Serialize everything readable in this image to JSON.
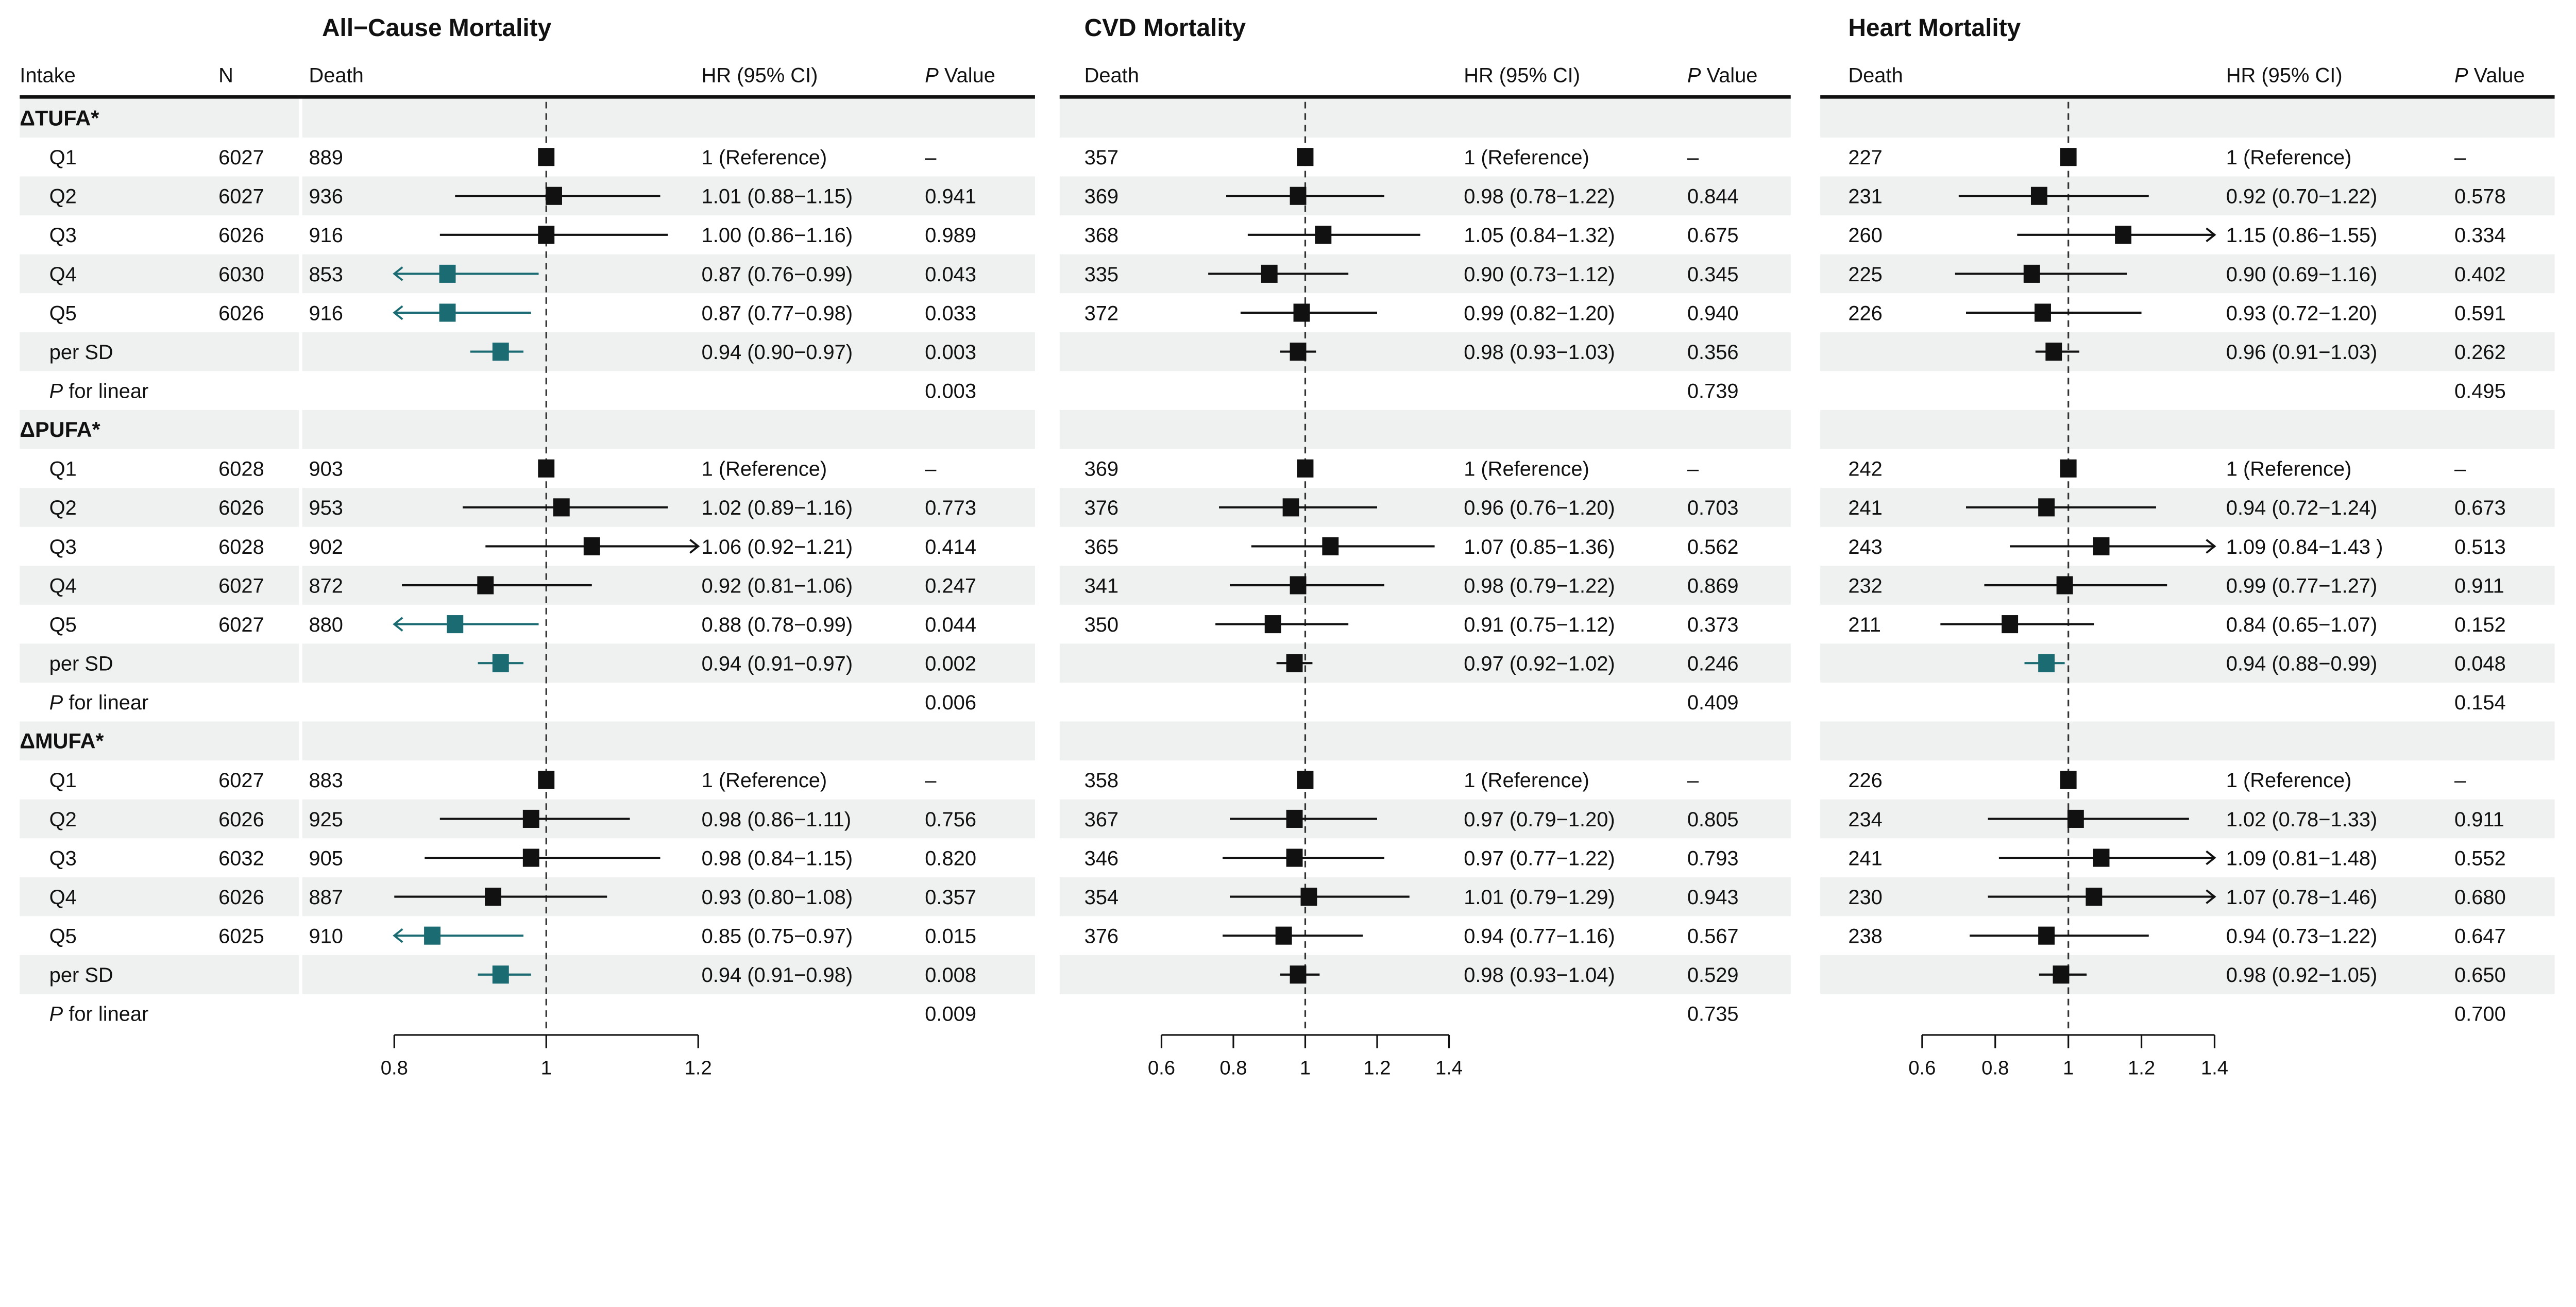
{
  "colors": {
    "significant": "#1b6b73",
    "default": "#111111",
    "band": "#eef1f0"
  },
  "table": {
    "headers": {
      "intake": "Intake",
      "n": "N"
    },
    "groups": [
      {
        "label": "ΔTUFA*",
        "rows": [
          {
            "label": "Q1",
            "n": "6027"
          },
          {
            "label": "Q2",
            "n": "6027"
          },
          {
            "label": "Q3",
            "n": "6026"
          },
          {
            "label": "Q4",
            "n": "6030"
          },
          {
            "label": "Q5",
            "n": "6026"
          },
          {
            "label": "per SD",
            "n": ""
          },
          {
            "label": "P for linear",
            "n": ""
          }
        ]
      },
      {
        "label": "ΔPUFA*",
        "rows": [
          {
            "label": "Q1",
            "n": "6028"
          },
          {
            "label": "Q2",
            "n": "6026"
          },
          {
            "label": "Q3",
            "n": "6028"
          },
          {
            "label": "Q4",
            "n": "6027"
          },
          {
            "label": "Q5",
            "n": "6027"
          },
          {
            "label": "per SD",
            "n": ""
          },
          {
            "label": "P for linear",
            "n": ""
          }
        ]
      },
      {
        "label": "ΔMUFA*",
        "rows": [
          {
            "label": "Q1",
            "n": "6027"
          },
          {
            "label": "Q2",
            "n": "6026"
          },
          {
            "label": "Q3",
            "n": "6032"
          },
          {
            "label": "Q4",
            "n": "6026"
          },
          {
            "label": "Q5",
            "n": "6025"
          },
          {
            "label": "per SD",
            "n": ""
          },
          {
            "label": "P for linear",
            "n": ""
          }
        ]
      }
    ]
  },
  "chart_data": [
    {
      "type": "forest",
      "title": "All−Cause Mortality",
      "headers": {
        "death": "Death",
        "hr": "HR (95% CI)",
        "p": "P Value"
      },
      "xlim": [
        0.8,
        1.2
      ],
      "ticks": [
        0.8,
        1,
        1.2
      ],
      "tick_labels": [
        "0.8",
        "1",
        "1.2"
      ],
      "reference_line": 1,
      "groups": [
        {
          "rows": [
            {
              "death": "889",
              "hr": 1,
              "lo": null,
              "hi": null,
              "hr_ci": "1 (Reference)",
              "p": "–"
            },
            {
              "death": "936",
              "hr": 1.01,
              "lo": 0.88,
              "hi": 1.15,
              "hr_ci": "1.01 (0.88−1.15)",
              "p": "0.941"
            },
            {
              "death": "916",
              "hr": 1.0,
              "lo": 0.86,
              "hi": 1.16,
              "hr_ci": "1.00 (0.86−1.16)",
              "p": "0.989"
            },
            {
              "death": "853",
              "hr": 0.87,
              "lo": 0.76,
              "hi": 0.99,
              "hr_ci": "0.87 (0.76−0.99)",
              "p": "0.043",
              "significant": true
            },
            {
              "death": "916",
              "hr": 0.87,
              "lo": 0.77,
              "hi": 0.98,
              "hr_ci": "0.87 (0.77−0.98)",
              "p": "0.033",
              "significant": true
            },
            {
              "death": "",
              "hr": 0.94,
              "lo": 0.9,
              "hi": 0.97,
              "hr_ci": "0.94 (0.90−0.97)",
              "p": "0.003",
              "significant": true
            },
            {
              "death": "",
              "hr": null,
              "hr_ci": "",
              "p": "0.003"
            }
          ]
        },
        {
          "rows": [
            {
              "death": "903",
              "hr": 1,
              "lo": null,
              "hi": null,
              "hr_ci": "1 (Reference)",
              "p": "–"
            },
            {
              "death": "953",
              "hr": 1.02,
              "lo": 0.89,
              "hi": 1.16,
              "hr_ci": "1.02 (0.89−1.16)",
              "p": "0.773"
            },
            {
              "death": "902",
              "hr": 1.06,
              "lo": 0.92,
              "hi": 1.21,
              "hr_ci": "1.06 (0.92−1.21)",
              "p": "0.414"
            },
            {
              "death": "872",
              "hr": 0.92,
              "lo": 0.81,
              "hi": 1.06,
              "hr_ci": "0.92 (0.81−1.06)",
              "p": "0.247"
            },
            {
              "death": "880",
              "hr": 0.88,
              "lo": 0.78,
              "hi": 0.99,
              "hr_ci": "0.88 (0.78−0.99)",
              "p": "0.044",
              "significant": true
            },
            {
              "death": "",
              "hr": 0.94,
              "lo": 0.91,
              "hi": 0.97,
              "hr_ci": "0.94 (0.91−0.97)",
              "p": "0.002",
              "significant": true
            },
            {
              "death": "",
              "hr": null,
              "hr_ci": "",
              "p": "0.006"
            }
          ]
        },
        {
          "rows": [
            {
              "death": "883",
              "hr": 1,
              "lo": null,
              "hi": null,
              "hr_ci": "1 (Reference)",
              "p": "–"
            },
            {
              "death": "925",
              "hr": 0.98,
              "lo": 0.86,
              "hi": 1.11,
              "hr_ci": "0.98 (0.86−1.11)",
              "p": "0.756"
            },
            {
              "death": "905",
              "hr": 0.98,
              "lo": 0.84,
              "hi": 1.15,
              "hr_ci": "0.98 (0.84−1.15)",
              "p": "0.820"
            },
            {
              "death": "887",
              "hr": 0.93,
              "lo": 0.8,
              "hi": 1.08,
              "hr_ci": "0.93 (0.80−1.08)",
              "p": "0.357"
            },
            {
              "death": "910",
              "hr": 0.85,
              "lo": 0.75,
              "hi": 0.97,
              "hr_ci": "0.85 (0.75−0.97)",
              "p": "0.015",
              "significant": true
            },
            {
              "death": "",
              "hr": 0.94,
              "lo": 0.91,
              "hi": 0.98,
              "hr_ci": "0.94 (0.91−0.98)",
              "p": "0.008",
              "significant": true
            },
            {
              "death": "",
              "hr": null,
              "hr_ci": "",
              "p": "0.009"
            }
          ]
        }
      ]
    },
    {
      "type": "forest",
      "title": "CVD Mortality",
      "headers": {
        "death": "Death",
        "hr": "HR (95% CI)",
        "p": "P Value"
      },
      "xlim": [
        0.6,
        1.4
      ],
      "ticks": [
        0.6,
        0.8,
        1,
        1.2,
        1.4
      ],
      "tick_labels": [
        "0.6",
        "0.8",
        "1",
        "1.2",
        "1.4"
      ],
      "reference_line": 1,
      "groups": [
        {
          "rows": [
            {
              "death": "357",
              "hr": 1,
              "lo": null,
              "hi": null,
              "hr_ci": "1 (Reference)",
              "p": "–"
            },
            {
              "death": "369",
              "hr": 0.98,
              "lo": 0.78,
              "hi": 1.22,
              "hr_ci": "0.98 (0.78−1.22)",
              "p": "0.844"
            },
            {
              "death": "368",
              "hr": 1.05,
              "lo": 0.84,
              "hi": 1.32,
              "hr_ci": "1.05 (0.84−1.32)",
              "p": "0.675"
            },
            {
              "death": "335",
              "hr": 0.9,
              "lo": 0.73,
              "hi": 1.12,
              "hr_ci": "0.90 (0.73−1.12)",
              "p": "0.345"
            },
            {
              "death": "372",
              "hr": 0.99,
              "lo": 0.82,
              "hi": 1.2,
              "hr_ci": "0.99 (0.82−1.20)",
              "p": "0.940"
            },
            {
              "death": "",
              "hr": 0.98,
              "lo": 0.93,
              "hi": 1.03,
              "hr_ci": "0.98 (0.93−1.03)",
              "p": "0.356"
            },
            {
              "death": "",
              "hr": null,
              "hr_ci": "",
              "p": "0.739"
            }
          ]
        },
        {
          "rows": [
            {
              "death": "369",
              "hr": 1,
              "lo": null,
              "hi": null,
              "hr_ci": "1 (Reference)",
              "p": "–"
            },
            {
              "death": "376",
              "hr": 0.96,
              "lo": 0.76,
              "hi": 1.2,
              "hr_ci": "0.96 (0.76−1.20)",
              "p": "0.703"
            },
            {
              "death": "365",
              "hr": 1.07,
              "lo": 0.85,
              "hi": 1.36,
              "hr_ci": "1.07 (0.85−1.36)",
              "p": "0.562"
            },
            {
              "death": "341",
              "hr": 0.98,
              "lo": 0.79,
              "hi": 1.22,
              "hr_ci": "0.98 (0.79−1.22)",
              "p": "0.869"
            },
            {
              "death": "350",
              "hr": 0.91,
              "lo": 0.75,
              "hi": 1.12,
              "hr_ci": "0.91 (0.75−1.12)",
              "p": "0.373"
            },
            {
              "death": "",
              "hr": 0.97,
              "lo": 0.92,
              "hi": 1.02,
              "hr_ci": "0.97 (0.92−1.02)",
              "p": "0.246"
            },
            {
              "death": "",
              "hr": null,
              "hr_ci": "",
              "p": "0.409"
            }
          ]
        },
        {
          "rows": [
            {
              "death": "358",
              "hr": 1,
              "lo": null,
              "hi": null,
              "hr_ci": "1 (Reference)",
              "p": "–"
            },
            {
              "death": "367",
              "hr": 0.97,
              "lo": 0.79,
              "hi": 1.2,
              "hr_ci": "0.97 (0.79−1.20)",
              "p": "0.805"
            },
            {
              "death": "346",
              "hr": 0.97,
              "lo": 0.77,
              "hi": 1.22,
              "hr_ci": "0.97 (0.77−1.22)",
              "p": "0.793"
            },
            {
              "death": "354",
              "hr": 1.01,
              "lo": 0.79,
              "hi": 1.29,
              "hr_ci": "1.01 (0.79−1.29)",
              "p": "0.943"
            },
            {
              "death": "376",
              "hr": 0.94,
              "lo": 0.77,
              "hi": 1.16,
              "hr_ci": "0.94 (0.77−1.16)",
              "p": "0.567"
            },
            {
              "death": "",
              "hr": 0.98,
              "lo": 0.93,
              "hi": 1.04,
              "hr_ci": "0.98 (0.93−1.04)",
              "p": "0.529"
            },
            {
              "death": "",
              "hr": null,
              "hr_ci": "",
              "p": "0.735"
            }
          ]
        }
      ]
    },
    {
      "type": "forest",
      "title": "Heart Mortality",
      "headers": {
        "death": "Death",
        "hr": "HR (95% CI)",
        "p": "P Value"
      },
      "xlim": [
        0.6,
        1.4
      ],
      "ticks": [
        0.6,
        0.8,
        1,
        1.2,
        1.4
      ],
      "tick_labels": [
        "0.6",
        "0.8",
        "1",
        "1.2",
        "1.4"
      ],
      "reference_line": 1,
      "groups": [
        {
          "rows": [
            {
              "death": "227",
              "hr": 1,
              "lo": null,
              "hi": null,
              "hr_ci": "1 (Reference)",
              "p": "–"
            },
            {
              "death": "231",
              "hr": 0.92,
              "lo": 0.7,
              "hi": 1.22,
              "hr_ci": "0.92 (0.70−1.22)",
              "p": "0.578"
            },
            {
              "death": "260",
              "hr": 1.15,
              "lo": 0.86,
              "hi": 1.55,
              "hr_ci": "1.15 (0.86−1.55)",
              "p": "0.334"
            },
            {
              "death": "225",
              "hr": 0.9,
              "lo": 0.69,
              "hi": 1.16,
              "hr_ci": "0.90 (0.69−1.16)",
              "p": "0.402"
            },
            {
              "death": "226",
              "hr": 0.93,
              "lo": 0.72,
              "hi": 1.2,
              "hr_ci": "0.93 (0.72−1.20)",
              "p": "0.591"
            },
            {
              "death": "",
              "hr": 0.96,
              "lo": 0.91,
              "hi": 1.03,
              "hr_ci": "0.96 (0.91−1.03)",
              "p": "0.262"
            },
            {
              "death": "",
              "hr": null,
              "hr_ci": "",
              "p": "0.495"
            }
          ]
        },
        {
          "rows": [
            {
              "death": "242",
              "hr": 1,
              "lo": null,
              "hi": null,
              "hr_ci": "1 (Reference)",
              "p": "–"
            },
            {
              "death": "241",
              "hr": 0.94,
              "lo": 0.72,
              "hi": 1.24,
              "hr_ci": "0.94 (0.72−1.24)",
              "p": "0.673"
            },
            {
              "death": "243",
              "hr": 1.09,
              "lo": 0.84,
              "hi": 1.43,
              "hr_ci": "1.09 (0.84−1.43 )",
              "p": "0.513"
            },
            {
              "death": "232",
              "hr": 0.99,
              "lo": 0.77,
              "hi": 1.27,
              "hr_ci": "0.99 (0.77−1.27)",
              "p": "0.911"
            },
            {
              "death": "211",
              "hr": 0.84,
              "lo": 0.65,
              "hi": 1.07,
              "hr_ci": "0.84 (0.65−1.07)",
              "p": "0.152"
            },
            {
              "death": "",
              "hr": 0.94,
              "lo": 0.88,
              "hi": 0.99,
              "hr_ci": "0.94 (0.88−0.99)",
              "p": "0.048",
              "significant": true
            },
            {
              "death": "",
              "hr": null,
              "hr_ci": "",
              "p": "0.154"
            }
          ]
        },
        {
          "rows": [
            {
              "death": "226",
              "hr": 1,
              "lo": null,
              "hi": null,
              "hr_ci": "1 (Reference)",
              "p": "–"
            },
            {
              "death": "234",
              "hr": 1.02,
              "lo": 0.78,
              "hi": 1.33,
              "hr_ci": "1.02 (0.78−1.33)",
              "p": "0.911"
            },
            {
              "death": "241",
              "hr": 1.09,
              "lo": 0.81,
              "hi": 1.48,
              "hr_ci": "1.09 (0.81−1.48)",
              "p": "0.552"
            },
            {
              "death": "230",
              "hr": 1.07,
              "lo": 0.78,
              "hi": 1.46,
              "hr_ci": "1.07 (0.78−1.46)",
              "p": "0.680"
            },
            {
              "death": "238",
              "hr": 0.94,
              "lo": 0.73,
              "hi": 1.22,
              "hr_ci": "0.94 (0.73−1.22)",
              "p": "0.647"
            },
            {
              "death": "",
              "hr": 0.98,
              "lo": 0.92,
              "hi": 1.05,
              "hr_ci": "0.98 (0.92−1.05)",
              "p": "0.650"
            },
            {
              "death": "",
              "hr": null,
              "hr_ci": "",
              "p": "0.700"
            }
          ]
        }
      ]
    }
  ]
}
